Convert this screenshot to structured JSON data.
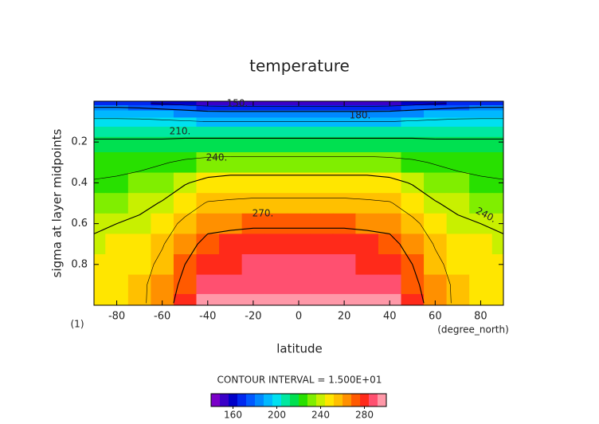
{
  "chart_data": {
    "type": "contour",
    "title": "temperature",
    "x_label": "latitude",
    "y_label": "sigma at layer midpoints",
    "y_unit": "(1)",
    "x_unit": "(degree_north)",
    "contour_interval_text": "CONTOUR INTERVAL = 1.500E+01",
    "contour_interval": 15,
    "xlim": [
      -90,
      90
    ],
    "ylim": [
      0,
      1
    ],
    "y_inverted": true,
    "xticks": [
      -80,
      -60,
      -40,
      -20,
      0,
      20,
      40,
      60,
      80
    ],
    "yticks": [
      0.2,
      0.4,
      0.6,
      0.8
    ],
    "x": [
      -90,
      -80,
      -70,
      -60,
      -50,
      -40,
      -30,
      -20,
      -10,
      0,
      10,
      20,
      30,
      40,
      50,
      60,
      70,
      80,
      90
    ],
    "y": [
      0.01,
      0.03,
      0.06,
      0.1,
      0.15,
      0.2,
      0.3,
      0.4,
      0.5,
      0.6,
      0.7,
      0.8,
      0.9,
      0.99
    ],
    "z": [
      [
        170,
        169,
        167,
        163,
        157,
        152,
        150,
        150,
        150,
        150,
        150,
        150,
        150,
        152,
        157,
        163,
        167,
        169,
        170
      ],
      [
        180,
        180,
        179,
        177,
        174,
        171,
        170,
        170,
        170,
        170,
        170,
        170,
        170,
        171,
        174,
        177,
        179,
        180,
        180
      ],
      [
        190,
        190,
        189,
        188,
        187,
        185,
        185,
        185,
        185,
        185,
        185,
        185,
        185,
        185,
        187,
        188,
        189,
        190,
        190
      ],
      [
        198,
        198,
        198,
        197,
        196,
        195,
        195,
        195,
        195,
        195,
        195,
        195,
        195,
        195,
        196,
        197,
        198,
        198,
        198
      ],
      [
        205,
        205,
        205,
        205,
        205,
        205,
        205,
        205,
        205,
        205,
        205,
        205,
        205,
        205,
        205,
        205,
        205,
        205,
        205
      ],
      [
        212,
        212,
        212,
        212,
        213,
        213,
        213,
        213,
        213,
        213,
        213,
        213,
        213,
        213,
        213,
        212,
        212,
        212,
        212
      ],
      [
        220,
        221,
        222,
        224,
        227,
        229,
        230,
        230,
        230,
        230,
        230,
        230,
        230,
        229,
        227,
        224,
        222,
        221,
        220
      ],
      [
        226,
        227,
        229,
        233,
        239,
        244,
        246,
        246,
        246,
        246,
        246,
        246,
        246,
        244,
        239,
        233,
        229,
        227,
        226
      ],
      [
        232,
        233,
        236,
        241,
        249,
        256,
        257,
        258,
        258,
        258,
        258,
        258,
        257,
        256,
        249,
        241,
        236,
        233,
        232
      ],
      [
        238,
        240,
        243,
        249,
        258,
        266,
        267,
        268,
        268,
        268,
        268,
        268,
        267,
        266,
        258,
        249,
        243,
        240,
        238
      ],
      [
        242,
        244,
        247,
        254,
        265,
        274,
        276,
        277,
        277,
        277,
        277,
        277,
        276,
        274,
        265,
        254,
        247,
        244,
        242
      ],
      [
        244,
        246,
        250,
        258,
        270,
        281,
        283,
        284,
        284,
        284,
        284,
        284,
        283,
        281,
        270,
        258,
        250,
        246,
        244
      ],
      [
        245,
        247,
        252,
        261,
        274,
        286,
        289,
        290,
        290,
        290,
        290,
        290,
        289,
        286,
        274,
        261,
        252,
        247,
        245
      ],
      [
        244,
        247,
        252,
        262,
        278,
        292,
        295,
        296,
        296,
        296,
        296,
        296,
        295,
        292,
        278,
        262,
        252,
        247,
        244
      ]
    ],
    "contour_labels": [
      {
        "value": 150,
        "label": "150."
      },
      {
        "value": 180,
        "label": "180."
      },
      {
        "value": 210,
        "label": "210."
      },
      {
        "value": 240,
        "label": "240."
      },
      {
        "value": 270,
        "label": "270."
      }
    ],
    "colorbar": {
      "clim": [
        140,
        300
      ],
      "colors": [
        "#7a00c8",
        "#3a00c8",
        "#0000c8",
        "#0028f0",
        "#0058ff",
        "#0088ff",
        "#00b8ff",
        "#00e0f0",
        "#00e8a0",
        "#00e050",
        "#28e000",
        "#80ee00",
        "#c8f000",
        "#ffe600",
        "#ffc000",
        "#ff9000",
        "#ff5a00",
        "#ff2a1a",
        "#ff5070",
        "#ff98a8"
      ],
      "ticks": [
        160,
        200,
        240,
        280
      ]
    }
  }
}
